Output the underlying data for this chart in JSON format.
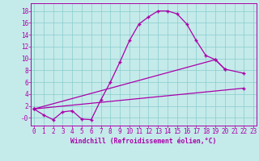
{
  "xlabel": "Windchill (Refroidissement éolien,°C)",
  "bg_color": "#c5eaea",
  "line_color": "#aa00aa",
  "grid_color": "#88cccc",
  "xlim": [
    -0.3,
    23.3
  ],
  "ylim": [
    -1.3,
    19.3
  ],
  "xticks": [
    0,
    1,
    2,
    3,
    4,
    5,
    6,
    7,
    8,
    9,
    10,
    11,
    12,
    13,
    14,
    15,
    16,
    17,
    18,
    19,
    20,
    21,
    22,
    23
  ],
  "yticks": [
    0,
    2,
    4,
    6,
    8,
    10,
    12,
    14,
    16,
    18
  ],
  "ytick_labels": [
    "-0",
    "2",
    "4",
    "6",
    "8",
    "10",
    "12",
    "14",
    "16",
    "18"
  ],
  "curve_x": [
    0,
    1,
    2,
    3,
    4,
    5,
    6,
    7,
    8,
    9,
    10,
    11,
    12,
    13,
    14,
    15,
    16,
    17,
    18,
    19,
    20
  ],
  "curve_y": [
    1.5,
    0.5,
    -0.3,
    1.0,
    1.2,
    -0.2,
    -0.3,
    3.0,
    6.0,
    9.4,
    13.0,
    15.8,
    17.0,
    18.0,
    18.0,
    17.5,
    15.8,
    13.0,
    10.5,
    9.8,
    8.2
  ],
  "line2_x": [
    0,
    22
  ],
  "line2_y": [
    1.5,
    5.0
  ],
  "line3_x": [
    0,
    19,
    20,
    22
  ],
  "line3_y": [
    1.5,
    9.8,
    8.2,
    7.5
  ],
  "marker": "+",
  "markersize": 3.5,
  "markeredgewidth": 1.0,
  "linewidth": 0.9,
  "xlabel_fontsize": 5.8,
  "tick_fontsize": 5.5
}
